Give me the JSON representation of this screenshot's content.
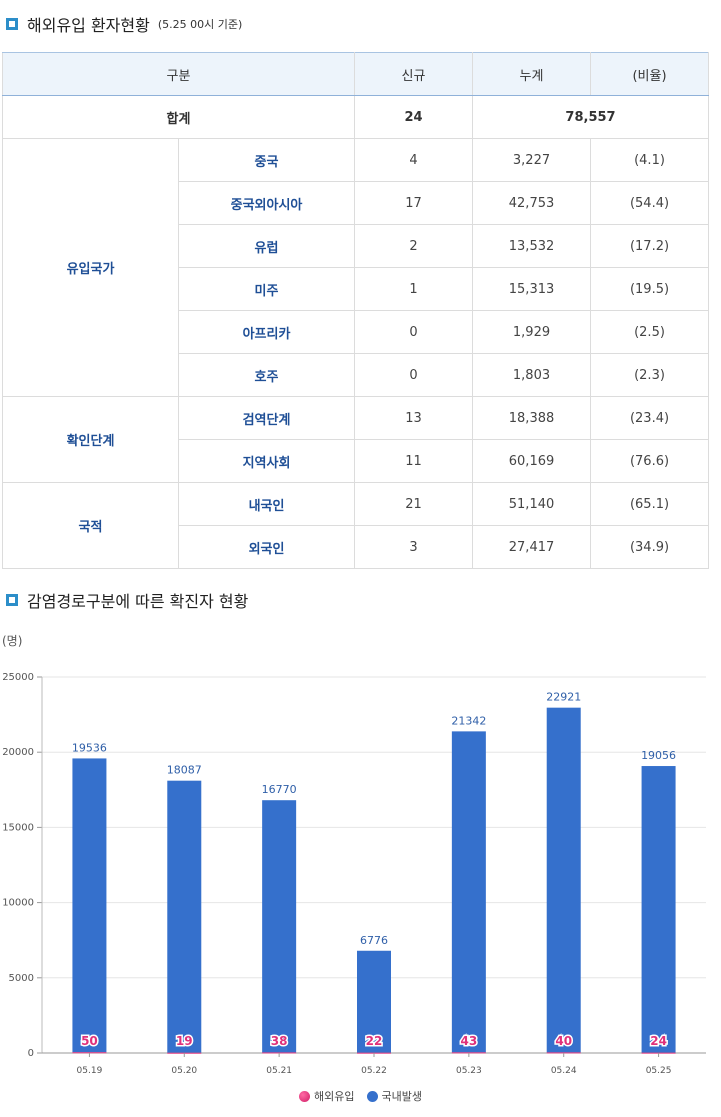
{
  "section1": {
    "title": "해외유입 환자현황",
    "subtitle": "(5.25 00시 기준)"
  },
  "table": {
    "headers": [
      "구분",
      "신규",
      "누계",
      "(비율)"
    ],
    "total": {
      "label": "합계",
      "new": "24",
      "cumulative": "78,557"
    },
    "groups": [
      {
        "label": "유입국가",
        "rows": [
          {
            "label": "중국",
            "new": "4",
            "cumulative": "3,227",
            "ratio": "(4.1)"
          },
          {
            "label": "중국외아시아",
            "new": "17",
            "cumulative": "42,753",
            "ratio": "(54.4)"
          },
          {
            "label": "유럽",
            "new": "2",
            "cumulative": "13,532",
            "ratio": "(17.2)"
          },
          {
            "label": "미주",
            "new": "1",
            "cumulative": "15,313",
            "ratio": "(19.5)"
          },
          {
            "label": "아프리카",
            "new": "0",
            "cumulative": "1,929",
            "ratio": "(2.5)"
          },
          {
            "label": "호주",
            "new": "0",
            "cumulative": "1,803",
            "ratio": "(2.3)"
          }
        ]
      },
      {
        "label": "확인단계",
        "rows": [
          {
            "label": "검역단계",
            "new": "13",
            "cumulative": "18,388",
            "ratio": "(23.4)"
          },
          {
            "label": "지역사회",
            "new": "11",
            "cumulative": "60,169",
            "ratio": "(76.6)"
          }
        ]
      },
      {
        "label": "국적",
        "rows": [
          {
            "label": "내국인",
            "new": "21",
            "cumulative": "51,140",
            "ratio": "(65.1)"
          },
          {
            "label": "외국인",
            "new": "3",
            "cumulative": "27,417",
            "ratio": "(34.9)"
          }
        ]
      }
    ]
  },
  "section2": {
    "title": "감염경로구분에 따른 확진자 현황"
  },
  "chart_data": {
    "type": "bar",
    "stacked": true,
    "ylabel": "(명)",
    "ylim": [
      0,
      25000
    ],
    "yticks": [
      0,
      5000,
      10000,
      15000,
      20000,
      25000
    ],
    "grid": true,
    "legend_position": "bottom-center",
    "categories": [
      "05.19",
      "05.20",
      "05.21",
      "05.22",
      "05.23",
      "05.24",
      "05.25"
    ],
    "series": [
      {
        "name": "해외유입",
        "color": "#e0317a",
        "values": [
          50,
          19,
          38,
          22,
          43,
          40,
          24
        ]
      },
      {
        "name": "국내발생",
        "color": "#3570cc",
        "values": [
          19536,
          18087,
          16770,
          6776,
          21342,
          22921,
          19056
        ]
      }
    ]
  }
}
